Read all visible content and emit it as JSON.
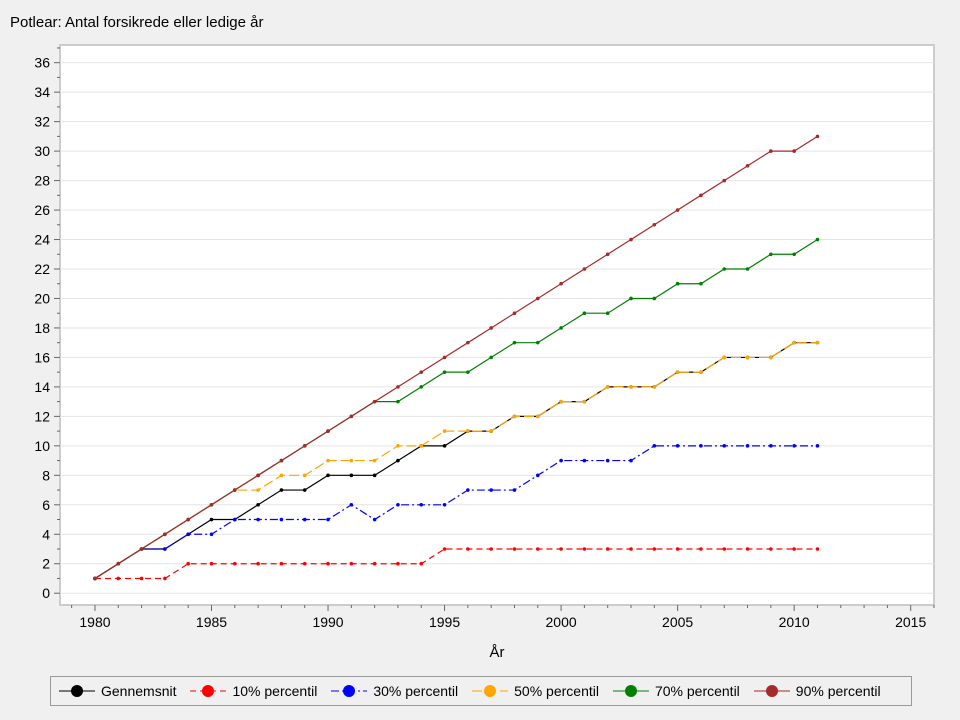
{
  "chart_data": {
    "type": "line",
    "title": "Potlear: Antal forsikrede eller ledige år",
    "xlabel": "År",
    "ylabel": "",
    "xlim": [
      1978.5,
      2016
    ],
    "ylim": [
      -0.8,
      37.2
    ],
    "xticks": [
      1980,
      1985,
      1990,
      1995,
      2000,
      2005,
      2010,
      2015
    ],
    "yticks": [
      0,
      2,
      4,
      6,
      8,
      10,
      12,
      14,
      16,
      18,
      20,
      22,
      24,
      26,
      28,
      30,
      32,
      34,
      36
    ],
    "grid": true,
    "legend_position": "bottom",
    "x": [
      1980,
      1981,
      1982,
      1983,
      1984,
      1985,
      1986,
      1987,
      1988,
      1989,
      1990,
      1991,
      1992,
      1993,
      1994,
      1995,
      1996,
      1997,
      1998,
      1999,
      2000,
      2001,
      2002,
      2003,
      2004,
      2005,
      2006,
      2007,
      2008,
      2009,
      2010,
      2011
    ],
    "series": [
      {
        "name": "Gennemsnit",
        "color": "#000000",
        "dash": "",
        "values": [
          1,
          2,
          3,
          3,
          4,
          5,
          5,
          6,
          7,
          7,
          8,
          8,
          8,
          9,
          10,
          10,
          11,
          11,
          12,
          12,
          13,
          13,
          14,
          14,
          14,
          15,
          15,
          16,
          16,
          16,
          17,
          17
        ]
      },
      {
        "name": "10% percentil",
        "color": "#ff0000",
        "dash": "6,4",
        "values": [
          1,
          1,
          1,
          1,
          2,
          2,
          2,
          2,
          2,
          2,
          2,
          2,
          2,
          2,
          2,
          3,
          3,
          3,
          3,
          3,
          3,
          3,
          3,
          3,
          3,
          3,
          3,
          3,
          3,
          3,
          3,
          3
        ]
      },
      {
        "name": "30% percentil",
        "color": "#0000ff",
        "dash": "8,3,2,3",
        "values": [
          1,
          2,
          3,
          3,
          4,
          4,
          5,
          5,
          5,
          5,
          5,
          6,
          5,
          6,
          6,
          6,
          7,
          7,
          7,
          8,
          9,
          9,
          9,
          9,
          10,
          10,
          10,
          10,
          10,
          10,
          10,
          10
        ]
      },
      {
        "name": "50% percentil",
        "color": "#ffa500",
        "dash": "10,4",
        "values": [
          1,
          2,
          3,
          4,
          5,
          6,
          7,
          7,
          8,
          8,
          9,
          9,
          9,
          10,
          10,
          11,
          11,
          11,
          12,
          12,
          13,
          13,
          14,
          14,
          14,
          15,
          15,
          16,
          16,
          16,
          17,
          17
        ]
      },
      {
        "name": "70% percentil",
        "color": "#008000",
        "dash": "",
        "values": [
          1,
          2,
          3,
          4,
          5,
          6,
          7,
          8,
          9,
          10,
          11,
          12,
          13,
          13,
          14,
          15,
          15,
          16,
          17,
          17,
          18,
          19,
          19,
          20,
          20,
          21,
          21,
          22,
          22,
          23,
          23,
          24
        ]
      },
      {
        "name": "90% percentil",
        "color": "#a52a2a",
        "dash": "",
        "values": [
          1,
          2,
          3,
          4,
          5,
          6,
          7,
          8,
          9,
          10,
          11,
          12,
          13,
          14,
          15,
          16,
          17,
          18,
          19,
          20,
          21,
          22,
          23,
          24,
          25,
          26,
          27,
          28,
          29,
          30,
          30,
          31
        ]
      }
    ]
  }
}
